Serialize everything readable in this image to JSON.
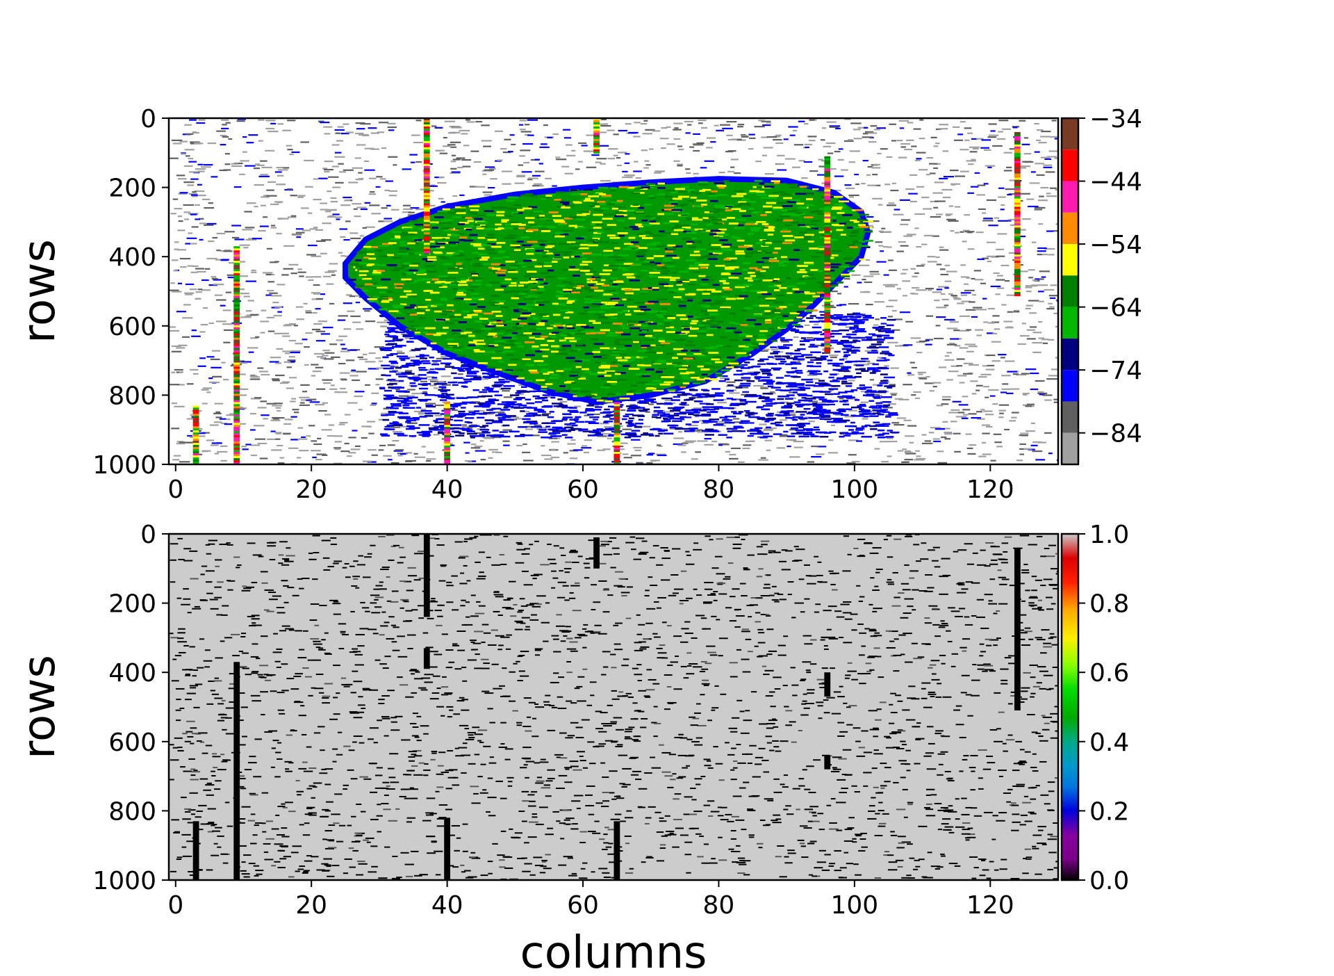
{
  "chart_data": [
    {
      "type": "heatmap",
      "title": "",
      "xlabel": "",
      "ylabel": "rows",
      "xlim": [
        -1,
        130
      ],
      "ylim": [
        1000,
        0
      ],
      "x_ticks": [
        0,
        20,
        40,
        60,
        80,
        100,
        120
      ],
      "x_tick_labels": [
        "0",
        "20",
        "40",
        "60",
        "80",
        "100",
        "120"
      ],
      "y_ticks": [
        0,
        200,
        400,
        600,
        800,
        1000
      ],
      "y_tick_labels": [
        "0",
        "200",
        "400",
        "600",
        "800",
        "1000"
      ],
      "colorbar": {
        "range": [
          -89,
          -34
        ],
        "ticks": [
          -34,
          -44,
          -54,
          -64,
          -74,
          -84
        ],
        "tick_labels": [
          "−34",
          "−44",
          "−54",
          "−64",
          "−74",
          "−84"
        ],
        "bands": [
          {
            "from": -39,
            "to": -34,
            "color": "#7a3b24"
          },
          {
            "from": -44,
            "to": -39,
            "color": "#ff0000"
          },
          {
            "from": -49,
            "to": -44,
            "color": "#ff1ab0"
          },
          {
            "from": -54,
            "to": -49,
            "color": "#ff8c00"
          },
          {
            "from": -59,
            "to": -54,
            "color": "#ffff00"
          },
          {
            "from": -64,
            "to": -59,
            "color": "#008000"
          },
          {
            "from": -69,
            "to": -64,
            "color": "#00b800"
          },
          {
            "from": -74,
            "to": -69,
            "color": "#000080"
          },
          {
            "from": -79,
            "to": -74,
            "color": "#0000ff"
          },
          {
            "from": -84,
            "to": -79,
            "color": "#606060"
          },
          {
            "from": -89,
            "to": -84,
            "color": "#a0a0a0"
          }
        ]
      },
      "blob_outline": [
        [
          25,
          420
        ],
        [
          28,
          350
        ],
        [
          33,
          300
        ],
        [
          40,
          255
        ],
        [
          50,
          220
        ],
        [
          60,
          200
        ],
        [
          70,
          185
        ],
        [
          80,
          175
        ],
        [
          90,
          180
        ],
        [
          97,
          215
        ],
        [
          101,
          270
        ],
        [
          102,
          330
        ],
        [
          101,
          400
        ],
        [
          98,
          460
        ],
        [
          94,
          540
        ],
        [
          90,
          610
        ],
        [
          85,
          680
        ],
        [
          78,
          760
        ],
        [
          70,
          800
        ],
        [
          62,
          820
        ],
        [
          55,
          790
        ],
        [
          48,
          740
        ],
        [
          40,
          680
        ],
        [
          33,
          600
        ],
        [
          28,
          520
        ],
        [
          25,
          460
        ]
      ],
      "stripe_columns": [
        3,
        9,
        37,
        40,
        62,
        65,
        96,
        124
      ]
    },
    {
      "type": "heatmap",
      "title": "",
      "xlabel": "columns",
      "ylabel": "rows",
      "xlim": [
        -1,
        130
      ],
      "ylim": [
        1000,
        0
      ],
      "x_ticks": [
        0,
        20,
        40,
        60,
        80,
        100,
        120
      ],
      "x_tick_labels": [
        "0",
        "20",
        "40",
        "60",
        "80",
        "100",
        "120"
      ],
      "y_ticks": [
        0,
        200,
        400,
        600,
        800,
        1000
      ],
      "y_tick_labels": [
        "0",
        "200",
        "400",
        "600",
        "800",
        "1000"
      ],
      "background_value": 0.8,
      "colorbar": {
        "range": [
          0.0,
          1.0
        ],
        "ticks": [
          1.0,
          0.8,
          0.6,
          0.4,
          0.2,
          0.0
        ],
        "tick_labels": [
          "1.0",
          "0.8",
          "0.6",
          "0.4",
          "0.2",
          "0.0"
        ],
        "colormap": "nipy_spectral"
      },
      "black_stripes": [
        {
          "col": 3,
          "from": 830,
          "to": 1000
        },
        {
          "col": 9,
          "from": 370,
          "to": 1000
        },
        {
          "col": 37,
          "from": 0,
          "to": 240
        },
        {
          "col": 37,
          "from": 330,
          "to": 390
        },
        {
          "col": 40,
          "from": 820,
          "to": 1000
        },
        {
          "col": 62,
          "from": 10,
          "to": 100
        },
        {
          "col": 65,
          "from": 830,
          "to": 1000
        },
        {
          "col": 96,
          "from": 400,
          "to": 470
        },
        {
          "col": 96,
          "from": 640,
          "to": 680
        },
        {
          "col": 124,
          "from": 40,
          "to": 510
        }
      ]
    }
  ]
}
